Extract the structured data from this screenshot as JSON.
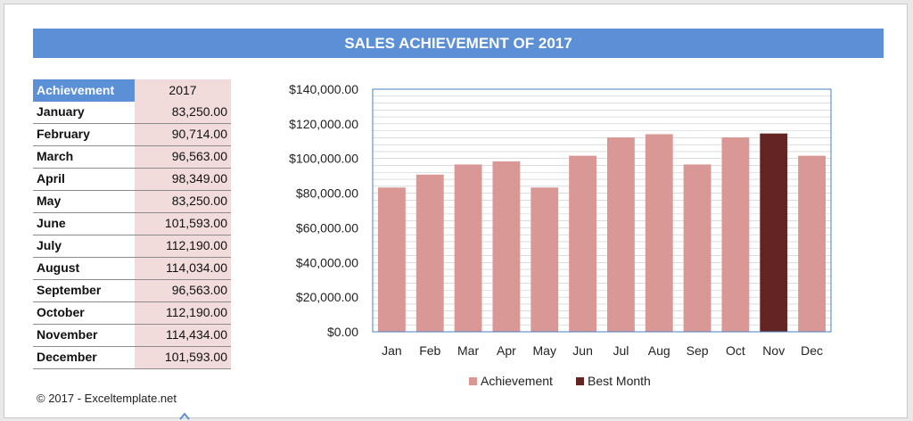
{
  "title": "SALES ACHIEVEMENT OF 2017",
  "table": {
    "header_label": "Achievement",
    "header_year": "2017",
    "rows": [
      {
        "month": "January",
        "value": "83,250.00"
      },
      {
        "month": "February",
        "value": "90,714.00"
      },
      {
        "month": "March",
        "value": "96,563.00"
      },
      {
        "month": "April",
        "value": "98,349.00"
      },
      {
        "month": "May",
        "value": "83,250.00"
      },
      {
        "month": "June",
        "value": "101,593.00"
      },
      {
        "month": "July",
        "value": "112,190.00"
      },
      {
        "month": "August",
        "value": "114,034.00"
      },
      {
        "month": "September",
        "value": "96,563.00"
      },
      {
        "month": "October",
        "value": "112,190.00"
      },
      {
        "month": "November",
        "value": "114,434.00"
      },
      {
        "month": "December",
        "value": "101,593.00"
      }
    ]
  },
  "footer": {
    "credit": "© 2017 - Exceltemplate.net"
  },
  "colors": {
    "title_band": "#5b8fd6",
    "achievement": "#d99795",
    "best_month": "#632523",
    "value_cell": "#f2dcdb"
  },
  "chart_data": {
    "type": "bar",
    "title": "",
    "xlabel": "",
    "ylabel": "",
    "categories": [
      "Jan",
      "Feb",
      "Mar",
      "Apr",
      "May",
      "Jun",
      "Jul",
      "Aug",
      "Sep",
      "Oct",
      "Nov",
      "Dec"
    ],
    "series": [
      {
        "name": "Achievement",
        "values": [
          83250,
          90714,
          96563,
          98349,
          83250,
          101593,
          112190,
          114034,
          96563,
          112190,
          null,
          101593
        ]
      },
      {
        "name": "Best Month",
        "values": [
          null,
          null,
          null,
          null,
          null,
          null,
          null,
          null,
          null,
          null,
          114434,
          null
        ]
      }
    ],
    "ylim": [
      0,
      140000
    ],
    "yticks": [
      "$0.00",
      "$20,000.00",
      "$40,000.00",
      "$60,000.00",
      "$80,000.00",
      "$100,000.00",
      "$120,000.00",
      "$140,000.00"
    ],
    "grid": true,
    "legend_position": "bottom"
  }
}
